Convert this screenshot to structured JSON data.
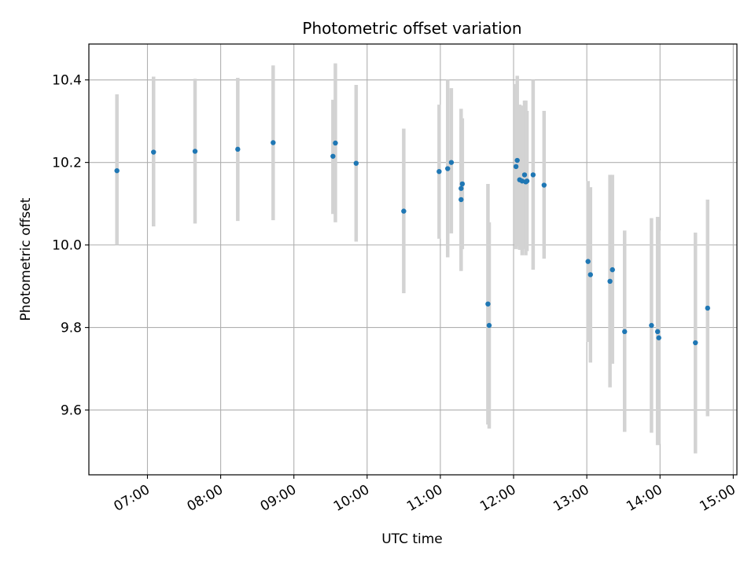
{
  "chart_data": {
    "type": "scatter",
    "title": "Photometric offset variation",
    "xlabel": "UTC time",
    "ylabel": "Photometric offset",
    "xlim": [
      "06:12",
      "15:03"
    ],
    "ylim": [
      9.443,
      10.487
    ],
    "x_ticks": [
      "07:00",
      "08:00",
      "09:00",
      "10:00",
      "11:00",
      "12:00",
      "13:00",
      "14:00",
      "15:00"
    ],
    "y_ticks": [
      "9.6",
      "9.8",
      "10.0",
      "10.2",
      "10.4"
    ],
    "grid": true,
    "error_bars": true,
    "point_color": "#1f77b4",
    "error_bar_color": "#d3d3d3",
    "points": [
      {
        "x": "06:35",
        "y": 10.18,
        "ylo": 10.0,
        "yhi": 10.365
      },
      {
        "x": "07:05",
        "y": 10.225,
        "ylo": 10.045,
        "yhi": 10.408
      },
      {
        "x": "07:39",
        "y": 10.227,
        "ylo": 10.052,
        "yhi": 10.403
      },
      {
        "x": "08:14",
        "y": 10.232,
        "ylo": 10.058,
        "yhi": 10.405
      },
      {
        "x": "08:43",
        "y": 10.248,
        "ylo": 10.06,
        "yhi": 10.435
      },
      {
        "x": "09:32",
        "y": 10.215,
        "ylo": 10.075,
        "yhi": 10.352
      },
      {
        "x": "09:34",
        "y": 10.247,
        "ylo": 10.055,
        "yhi": 10.44
      },
      {
        "x": "09:51",
        "y": 10.198,
        "ylo": 10.008,
        "yhi": 10.388
      },
      {
        "x": "10:30",
        "y": 10.082,
        "ylo": 9.883,
        "yhi": 10.282
      },
      {
        "x": "10:59",
        "y": 10.178,
        "ylo": 10.015,
        "yhi": 10.34
      },
      {
        "x": "11:06",
        "y": 10.185,
        "ylo": 9.97,
        "yhi": 10.4
      },
      {
        "x": "11:09",
        "y": 10.2,
        "ylo": 10.028,
        "yhi": 10.38
      },
      {
        "x": "11:17",
        "y": 10.11,
        "ylo": 9.937,
        "yhi": 10.285
      },
      {
        "x": "11:17",
        "y": 10.137,
        "ylo": 9.94,
        "yhi": 10.33
      },
      {
        "x": "11:18",
        "y": 10.148,
        "ylo": 9.99,
        "yhi": 10.307
      },
      {
        "x": "11:39",
        "y": 9.857,
        "ylo": 9.565,
        "yhi": 10.148
      },
      {
        "x": "11:40",
        "y": 9.805,
        "ylo": 9.555,
        "yhi": 10.055
      },
      {
        "x": "12:02",
        "y": 10.19,
        "ylo": 9.99,
        "yhi": 10.39
      },
      {
        "x": "12:03",
        "y": 10.205,
        "ylo": 9.997,
        "yhi": 10.41
      },
      {
        "x": "12:05",
        "y": 10.158,
        "ylo": 9.988,
        "yhi": 10.34
      },
      {
        "x": "12:07",
        "y": 10.155,
        "ylo": 9.975,
        "yhi": 10.338
      },
      {
        "x": "12:09",
        "y": 10.17,
        "ylo": 9.99,
        "yhi": 10.35
      },
      {
        "x": "12:10",
        "y": 10.153,
        "ylo": 9.975,
        "yhi": 10.35
      },
      {
        "x": "12:11",
        "y": 10.155,
        "ylo": 9.985,
        "yhi": 10.325
      },
      {
        "x": "12:16",
        "y": 10.17,
        "ylo": 9.94,
        "yhi": 10.4
      },
      {
        "x": "12:25",
        "y": 10.145,
        "ylo": 9.967,
        "yhi": 10.325
      },
      {
        "x": "13:01",
        "y": 9.96,
        "ylo": 9.765,
        "yhi": 10.155
      },
      {
        "x": "13:03",
        "y": 9.928,
        "ylo": 9.715,
        "yhi": 10.14
      },
      {
        "x": "13:19",
        "y": 9.912,
        "ylo": 9.655,
        "yhi": 10.17
      },
      {
        "x": "13:21",
        "y": 9.94,
        "ylo": 9.712,
        "yhi": 10.17
      },
      {
        "x": "13:31",
        "y": 9.79,
        "ylo": 9.547,
        "yhi": 10.035
      },
      {
        "x": "13:53",
        "y": 9.805,
        "ylo": 9.545,
        "yhi": 10.065
      },
      {
        "x": "13:58",
        "y": 9.79,
        "ylo": 9.515,
        "yhi": 10.068
      },
      {
        "x": "13:59",
        "y": 9.775,
        "ylo": 9.518,
        "yhi": 10.035
      },
      {
        "x": "14:29",
        "y": 9.763,
        "ylo": 9.495,
        "yhi": 10.03
      },
      {
        "x": "14:39",
        "y": 9.847,
        "ylo": 9.585,
        "yhi": 10.11
      }
    ]
  }
}
